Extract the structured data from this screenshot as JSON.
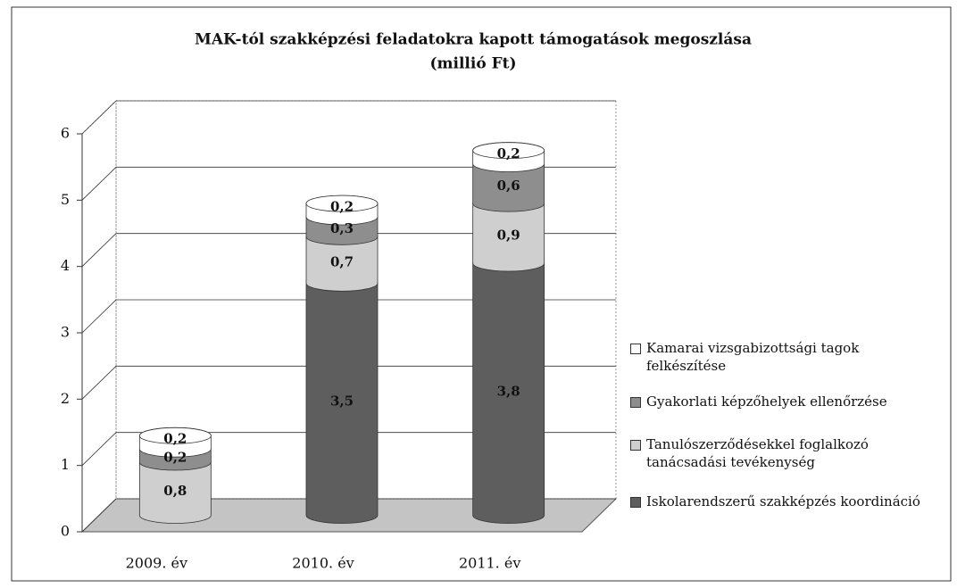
{
  "chart_data": {
    "type": "bar3d_stacked",
    "title": "MAK-tól szakképzési feladatokra kapott támogatások megoszlása",
    "subtitle": "(millió Ft)",
    "categories": [
      "2009. év",
      "2010. év",
      "2011. év"
    ],
    "series": [
      {
        "name": "Iskolarendszerű szakképzés koordináció",
        "color": "#5e5e5e",
        "values": [
          null,
          3.5,
          3.8
        ],
        "value_labels": [
          null,
          "3,5",
          "3,8"
        ]
      },
      {
        "name": "Tanulószerződésekkel foglalkozó tanácsadási tevékenység",
        "color": "#cfcfcf",
        "values": [
          0.8,
          0.7,
          0.9
        ],
        "value_labels": [
          "0,8",
          "0,7",
          "0,9"
        ]
      },
      {
        "name": "Gyakorlati képzőhelyek ellenőrzése",
        "color": "#8e8e8e",
        "values": [
          0.2,
          0.3,
          0.6
        ],
        "value_labels": [
          "0,2",
          "0,3",
          "0,6"
        ]
      },
      {
        "name": "Kamarai vizsgabizottsági tagok felkészítése",
        "color": "#ffffff",
        "values": [
          0.2,
          0.2,
          0.2
        ],
        "value_labels": [
          "0,2",
          "0,2",
          "0,2"
        ]
      }
    ],
    "ylim": [
      0,
      6
    ],
    "yticks": [
      0,
      1,
      2,
      3,
      4,
      5,
      6
    ],
    "grid": true,
    "legend": "right"
  }
}
